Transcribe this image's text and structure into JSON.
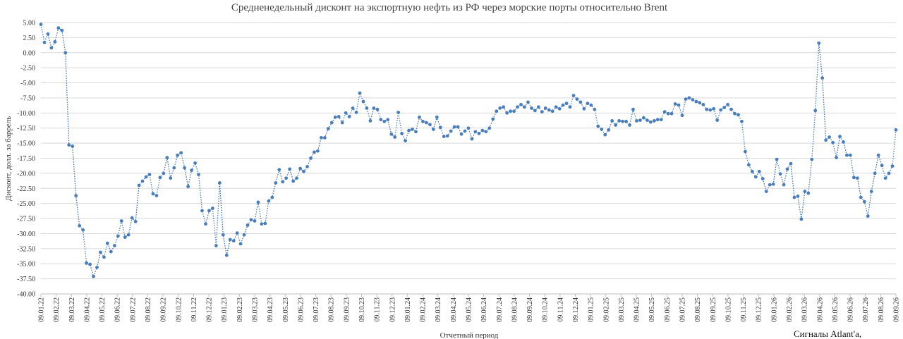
{
  "chart_data": {
    "type": "line",
    "title": "Средненедельный дисконт на экспортную нефть из РФ через морские порты относительно Brent",
    "xlabel": "Отчетный период",
    "ylabel": "Дисконт, долл. за баррель",
    "ylim": [
      -40,
      5
    ],
    "yticks": [
      "5.00",
      "2.50",
      "0.00",
      "-2.50",
      "-5.00",
      "-7.50",
      "-10.00",
      "-12.50",
      "-15.00",
      "-17.50",
      "-20.00",
      "-22.50",
      "-25.00",
      "-27.50",
      "-30.00",
      "-32.50",
      "-35.00",
      "-37.50",
      "-40.00"
    ],
    "xticks": [
      "09.01.22",
      "09.02.22",
      "09.03.22",
      "09.04.22",
      "09.05.22",
      "09.06.22",
      "09.07.22",
      "09.08.22",
      "09.09.22",
      "09.10.22",
      "09.11.22",
      "09.12.22",
      "09.01.23",
      "09.02.23",
      "09.03.23",
      "09.04.23",
      "09.05.23",
      "09.06.23",
      "09.07.23",
      "09.08.23",
      "09.09.23",
      "09.10.23",
      "09.11.23",
      "09.12.23",
      "09.01.24",
      "09.02.24",
      "09.03.24",
      "09.04.24",
      "09.05.24",
      "09.06.24",
      "09.07.24",
      "09.08.24",
      "09.09.24",
      "09.10.24",
      "09.11.24",
      "09.12.24",
      "09.01.25",
      "09.02.25",
      "09.03.25",
      "09.04.25",
      "09.05.25",
      "09.06.25",
      "09.07.25",
      "09.08.25",
      "09.09.25",
      "09.10.25",
      "09.11.25",
      "09.12.25",
      "09.01.26",
      "09.02.26",
      "09.03.26",
      "09.04.26",
      "09.05.26",
      "09.06.26",
      "09.07.26",
      "09.08.26",
      "09.09.26"
    ],
    "grid": true,
    "legend": "none",
    "marker": "circle",
    "line_style": "dotted",
    "series_color": "#4a7ebb",
    "series": [
      {
        "values": [
          4.7,
          1.7,
          3.1,
          0.8,
          1.8,
          4.1,
          3.7,
          0.0,
          -15.3,
          -15.5,
          -23.7,
          -28.7,
          -29.4,
          -34.9,
          -35.1,
          -37.1,
          -35.6,
          -33.1,
          -33.9,
          -31.6,
          -33.0,
          -32.0,
          -30.4,
          -27.9,
          -30.6,
          -30.2,
          -27.4,
          -28.0,
          -22.0,
          -21.3,
          -20.6,
          -20.2,
          -23.4,
          -23.7,
          -20.7,
          -20.0,
          -17.4,
          -20.8,
          -19.1,
          -17.0,
          -16.6,
          -19.1,
          -22.2,
          -19.5,
          -18.3,
          -20.2,
          -26.2,
          -28.4,
          -26.2,
          -25.8,
          -32.0,
          -21.6,
          -30.2,
          -33.6,
          -31.0,
          -31.2,
          -29.9,
          -31.7,
          -30.2,
          -28.6,
          -27.7,
          -27.9,
          -24.8,
          -28.4,
          -28.3,
          -24.6,
          -24.0,
          -21.6,
          -19.4,
          -21.4,
          -20.8,
          -19.3,
          -21.3,
          -20.8,
          -19.2,
          -19.7,
          -18.9,
          -17.5,
          -16.5,
          -16.3,
          -14.1,
          -14.1,
          -12.6,
          -11.6,
          -10.7,
          -10.6,
          -11.6,
          -10.0,
          -10.6,
          -9.2,
          -9.9,
          -6.7,
          -8.1,
          -9.2,
          -11.3,
          -9.2,
          -9.4,
          -11.1,
          -11.4,
          -11.1,
          -13.5,
          -14.0,
          -9.9,
          -13.4,
          -14.6,
          -12.9,
          -12.7,
          -13.1,
          -10.7,
          -11.4,
          -11.6,
          -11.9,
          -12.7,
          -10.7,
          -12.4,
          -13.9,
          -13.8,
          -13.0,
          -12.3,
          -12.3,
          -13.5,
          -13.0,
          -12.5,
          -14.3,
          -13.1,
          -13.4,
          -12.9,
          -13.1,
          -12.5,
          -11.0,
          -9.7,
          -9.2,
          -9.0,
          -10.0,
          -9.7,
          -9.7,
          -9.0,
          -8.6,
          -9.0,
          -8.2,
          -9.2,
          -9.6,
          -9.0,
          -9.8,
          -9.2,
          -9.5,
          -9.7,
          -9.0,
          -9.3,
          -8.7,
          -8.4,
          -9.0,
          -7.1,
          -7.7,
          -8.2,
          -9.3,
          -8.4,
          -8.7,
          -9.4,
          -12.2,
          -12.7,
          -13.6,
          -12.8,
          -11.3,
          -12.0,
          -11.3,
          -11.4,
          -11.4,
          -12.0,
          -9.4,
          -11.3,
          -11.2,
          -10.8,
          -11.2,
          -11.5,
          -11.3,
          -11.1,
          -11.1,
          -9.8,
          -10.1,
          -10.1,
          -8.5,
          -8.7,
          -10.4,
          -7.7,
          -7.5,
          -7.8,
          -8.1,
          -8.3,
          -8.6,
          -9.4,
          -9.5,
          -9.3,
          -11.2,
          -9.5,
          -9.1,
          -8.6,
          -9.4,
          -10.1,
          -10.3,
          -11.4,
          -16.4,
          -18.6,
          -19.7,
          -20.6,
          -19.7,
          -20.9,
          -23.0,
          -21.9,
          -21.8,
          -17.7,
          -20.1,
          -21.9,
          -19.3,
          -18.4,
          -24.0,
          -23.8,
          -27.6,
          -23.0,
          -23.3,
          -17.7,
          -9.6,
          1.6,
          -4.2,
          -14.5,
          -14.0,
          -14.9,
          -17.4,
          -13.9,
          -14.8,
          -17.0,
          -17.0,
          -20.7,
          -20.8,
          -24.0,
          -24.7,
          -27.1,
          -23.0,
          -20.0,
          -17.0,
          -18.7,
          -20.8,
          -20.0,
          -18.8,
          -12.8
        ]
      }
    ]
  },
  "watermark": "Сигналы Atlant'a,"
}
